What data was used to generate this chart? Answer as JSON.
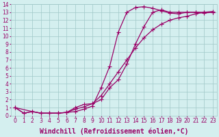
{
  "background_color": "#d4efef",
  "grid_color": "#a0c8c8",
  "line_color": "#990066",
  "marker": "+",
  "markersize": 4,
  "linewidth": 0.9,
  "xlabel": "Windchill (Refroidissement éolien,°C)",
  "xlabel_fontsize": 7,
  "xlim": [
    -0.5,
    23.5
  ],
  "ylim": [
    0,
    14
  ],
  "xticks": [
    0,
    1,
    2,
    3,
    4,
    5,
    6,
    7,
    8,
    9,
    10,
    11,
    12,
    13,
    14,
    15,
    16,
    17,
    18,
    19,
    20,
    21,
    22,
    23
  ],
  "yticks": [
    0,
    1,
    2,
    3,
    4,
    5,
    6,
    7,
    8,
    9,
    10,
    11,
    12,
    13,
    14
  ],
  "tick_fontsize": 5.5,
  "series": [
    {
      "x": [
        0,
        1,
        2,
        3,
        4,
        5,
        6,
        7,
        8,
        9,
        10,
        11,
        12,
        13,
        14,
        15,
        16,
        17,
        18,
        19,
        20,
        21,
        22,
        23
      ],
      "y": [
        1.0,
        0.3,
        0.5,
        0.3,
        0.3,
        0.3,
        0.4,
        0.5,
        0.8,
        1.2,
        3.5,
        6.2,
        10.5,
        13.0,
        13.6,
        13.7,
        13.5,
        13.2,
        12.9,
        12.8,
        13.0,
        13.0,
        12.9,
        13.0
      ]
    },
    {
      "x": [
        0,
        2,
        3,
        4,
        5,
        6,
        7,
        8,
        9,
        10,
        11,
        12,
        13,
        14,
        15,
        16,
        17,
        18,
        19,
        20,
        21,
        22,
        23
      ],
      "y": [
        1.0,
        0.5,
        0.3,
        0.3,
        0.3,
        0.4,
        0.8,
        1.1,
        1.5,
        2.5,
        4.0,
        5.5,
        7.0,
        8.5,
        9.8,
        10.8,
        11.5,
        12.0,
        12.3,
        12.5,
        12.8,
        13.0,
        13.1
      ]
    },
    {
      "x": [
        0,
        1,
        2,
        3,
        4,
        5,
        6,
        7,
        8,
        9,
        10,
        11,
        12,
        13,
        14,
        15,
        16,
        17,
        18,
        19,
        20,
        21,
        22,
        23
      ],
      "y": [
        1.0,
        0.3,
        0.5,
        0.3,
        0.3,
        0.3,
        0.4,
        1.0,
        1.4,
        1.5,
        2.0,
        3.5,
        4.5,
        6.5,
        9.0,
        11.2,
        13.0,
        13.3,
        13.0,
        13.0,
        13.0,
        13.0,
        13.0,
        13.0
      ]
    }
  ]
}
